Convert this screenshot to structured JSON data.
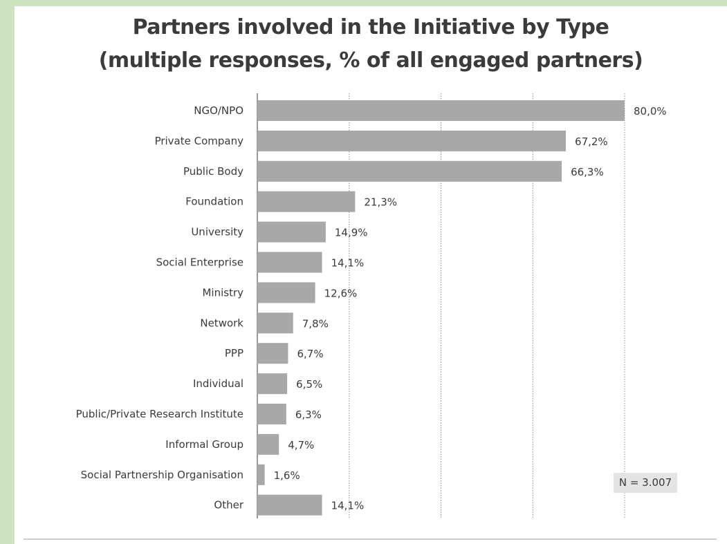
{
  "chart_data": {
    "type": "bar",
    "orientation": "horizontal",
    "title": "Partners involved in the Initiative by Type",
    "subtitle": "(multiple responses, % of all engaged partners)",
    "categories": [
      "NGO/NPO",
      "Private Company",
      "Public Body",
      "Foundation",
      "University",
      "Social Enterprise",
      "Ministry",
      "Network",
      "PPP",
      "Individual",
      "Public/Private Research Institute",
      "Informal Group",
      "Social Partnership Organisation",
      "Other"
    ],
    "values": [
      80.0,
      67.2,
      66.3,
      21.3,
      14.9,
      14.1,
      12.6,
      7.8,
      6.7,
      6.5,
      6.3,
      4.7,
      1.6,
      14.1
    ],
    "value_labels": [
      "80,0%",
      "67,2%",
      "66,3%",
      "21,3%",
      "14,9%",
      "14,1%",
      "12,6%",
      "7,8%",
      "6,7%",
      "6,5%",
      "6,3%",
      "4,7%",
      "1,6%",
      "14,1%"
    ],
    "xlim": [
      0,
      80
    ],
    "grid": true,
    "gridline_values": [
      0,
      20,
      40,
      60,
      80
    ],
    "bar_color": "#a8a8a8",
    "annotation": "N = 3.007"
  }
}
